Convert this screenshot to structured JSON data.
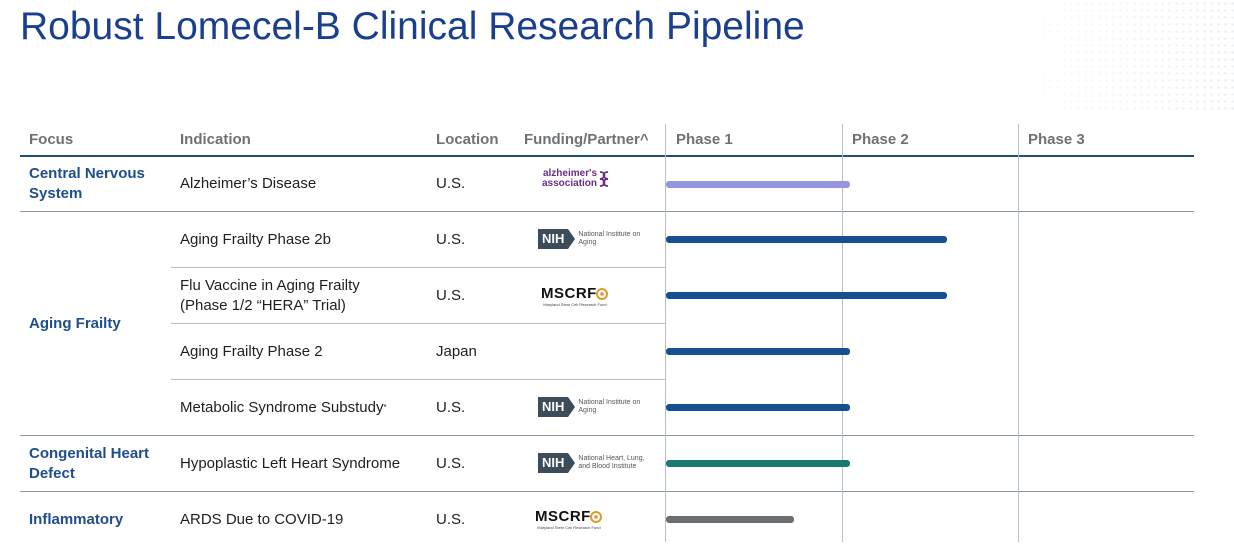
{
  "title": "Robust Lomecel-B Clinical Research Pipeline",
  "columns": {
    "focus": "Focus",
    "indication": "Indication",
    "location": "Location",
    "funding": "Funding/Partner^",
    "phase1": "Phase 1",
    "phase2": "Phase 2",
    "phase3": "Phase 3"
  },
  "focus_groups": [
    {
      "label": "Central Nervous System"
    },
    {
      "label": "Aging Frailty"
    },
    {
      "label": "Congenital Heart Defect"
    },
    {
      "label": "Inflammatory"
    }
  ],
  "rows": [
    {
      "indication": "Alzheimer’s Disease",
      "indication_line2": "",
      "location": "U.S.",
      "partner": "alzheimers",
      "progress_phases": 1.0,
      "bar_color": "#9497e0"
    },
    {
      "indication": "Aging Frailty Phase 2b",
      "indication_line2": "",
      "location": "U.S.",
      "partner": "nih-aging",
      "progress_phases": 1.55,
      "bar_color": "#154f94"
    },
    {
      "indication": "Flu Vaccine in Aging Frailty",
      "indication_line2": "(Phase 1/2 “HERA” Trial)",
      "location": "U.S.",
      "partner": "mscrf",
      "progress_phases": 1.55,
      "bar_color": "#154f94"
    },
    {
      "indication": "Aging Frailty Phase 2",
      "indication_line2": "",
      "location": "Japan",
      "partner": "",
      "progress_phases": 1.0,
      "bar_color": "#154f94"
    },
    {
      "indication": "Metabolic Syndrome Substudy",
      "indication_line2": "",
      "indication_sup": "*",
      "location": "U.S.",
      "partner": "nih-aging",
      "progress_phases": 1.0,
      "bar_color": "#154f94"
    },
    {
      "indication": "Hypoplastic Left Heart Syndrome",
      "indication_line2": "",
      "location": "U.S.",
      "partner": "nih-heart",
      "progress_phases": 1.0,
      "bar_color": "#1a7a72"
    },
    {
      "indication": "ARDS Due to COVID-19",
      "indication_line2": "",
      "location": "U.S.",
      "partner": "mscrf",
      "progress_phases": 0.68,
      "bar_color": "#6b6f72"
    }
  ],
  "logos": {
    "alzheimers": {
      "line1": "alzheimer's",
      "line2": "association"
    },
    "nih": {
      "abbr": "NIH"
    },
    "nih_aging": {
      "text": "National Institute on Aging"
    },
    "nih_heart": {
      "text": "National Heart, Lung, and Blood Institute"
    },
    "mscrf": {
      "word": "MSCRF",
      "sub": "Maryland Stem Cell Research Fund"
    }
  },
  "colors": {
    "title": "#1b3f8f",
    "focus": "#1f4e8c",
    "rule": "#1f4e79"
  }
}
